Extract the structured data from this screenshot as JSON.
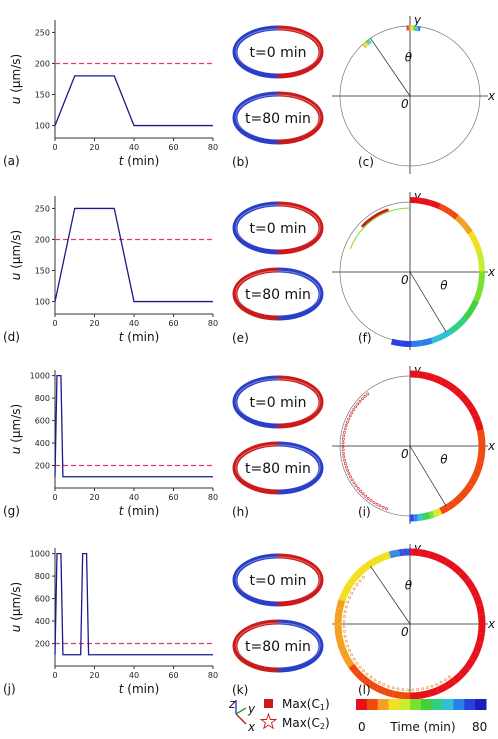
{
  "colors": {
    "curve": "#1a1a8c",
    "threshold": "#e8357a",
    "ring_red": "#cc1a1a",
    "ring_blue": "#2a3fc8",
    "ring_blue_alt": "#3a4fd8"
  },
  "rows": [
    {
      "velocity_panel": {
        "label": "(a)"
      },
      "ring_panel": {
        "label": "(b)",
        "top_text": "t=0 min",
        "bottom_text": "t=80 min"
      },
      "polar_panel": {
        "label": "(c)",
        "x": "x",
        "y": "y",
        "theta": "θ",
        "origin": "0"
      }
    },
    {
      "velocity_panel": {
        "label": "(d)"
      },
      "ring_panel": {
        "label": "(e)",
        "top_text": "t=0 min",
        "bottom_text": "t=80 min"
      },
      "polar_panel": {
        "label": "(f)",
        "x": "x",
        "y": "y",
        "theta": "θ",
        "origin": "0"
      }
    },
    {
      "velocity_panel": {
        "label": "(g)"
      },
      "ring_panel": {
        "label": "(h)",
        "top_text": "t=0 min",
        "bottom_text": "t=80 min"
      },
      "polar_panel": {
        "label": "(i)",
        "x": "x",
        "y": "y",
        "theta": "θ",
        "origin": "0"
      }
    },
    {
      "velocity_panel": {
        "label": "(j)"
      },
      "ring_panel": {
        "label": "(k)",
        "top_text": "t=0 min",
        "bottom_text": "t=80 min"
      },
      "polar_panel": {
        "label": "(l)",
        "x": "x",
        "y": "y",
        "theta": "θ",
        "origin": "0"
      }
    }
  ],
  "chart_data": [
    {
      "type": "line",
      "xlabel": "t (min)",
      "ylabel": "u (μm/s)",
      "xlim": [
        0,
        80
      ],
      "ylim": [
        80,
        270
      ],
      "xticks": [
        0,
        20,
        40,
        60,
        80
      ],
      "yticks": [
        100,
        150,
        200,
        250
      ],
      "threshold": 200,
      "x": [
        0,
        10,
        30,
        40,
        80
      ],
      "y": [
        100,
        180,
        180,
        100,
        100
      ]
    },
    {
      "type": "line",
      "xlabel": "t (min)",
      "ylabel": "u (μm/s)",
      "xlim": [
        0,
        80
      ],
      "ylim": [
        80,
        270
      ],
      "xticks": [
        0,
        20,
        40,
        60,
        80
      ],
      "yticks": [
        100,
        150,
        200,
        250
      ],
      "threshold": 200,
      "x": [
        0,
        10,
        30,
        40,
        80
      ],
      "y": [
        100,
        250,
        250,
        100,
        100
      ]
    },
    {
      "type": "line",
      "xlabel": "t (min)",
      "ylabel": "u (μm/s)",
      "xlim": [
        0,
        80
      ],
      "ylim": [
        0,
        1050
      ],
      "xticks": [
        0,
        20,
        40,
        60,
        80
      ],
      "yticks": [
        200,
        400,
        600,
        800,
        1000
      ],
      "threshold": 200,
      "x": [
        0,
        1,
        3,
        4,
        80
      ],
      "y": [
        100,
        1000,
        1000,
        100,
        100
      ]
    },
    {
      "type": "line",
      "xlabel": "t (min)",
      "ylabel": "u (μm/s)",
      "xlim": [
        0,
        80
      ],
      "ylim": [
        0,
        1050
      ],
      "xticks": [
        0,
        20,
        40,
        60,
        80
      ],
      "yticks": [
        200,
        400,
        600,
        800,
        1000
      ],
      "threshold": 200,
      "x": [
        0,
        1,
        3,
        4,
        13,
        14,
        16,
        17,
        80
      ],
      "y": [
        100,
        1000,
        1000,
        100,
        100,
        1000,
        1000,
        100,
        100
      ]
    }
  ],
  "legend": {
    "axes_triad": {
      "z": "z",
      "y": "y",
      "x": "x"
    },
    "max_c1": "Max(C",
    "max_c1_sub": "1",
    "max_c2": "Max(C",
    "max_c2_sub": "2",
    "paren_close": ")",
    "colorbar_labels": [
      "0",
      "Time (min)",
      "80"
    ],
    "colorbar_colors": [
      "#e8101a",
      "#f04a10",
      "#f5a020",
      "#f2e020",
      "#c8ee30",
      "#7ae030",
      "#40d040",
      "#30d080",
      "#30c0d8",
      "#2a80e8",
      "#2840e0",
      "#1820b8"
    ]
  }
}
